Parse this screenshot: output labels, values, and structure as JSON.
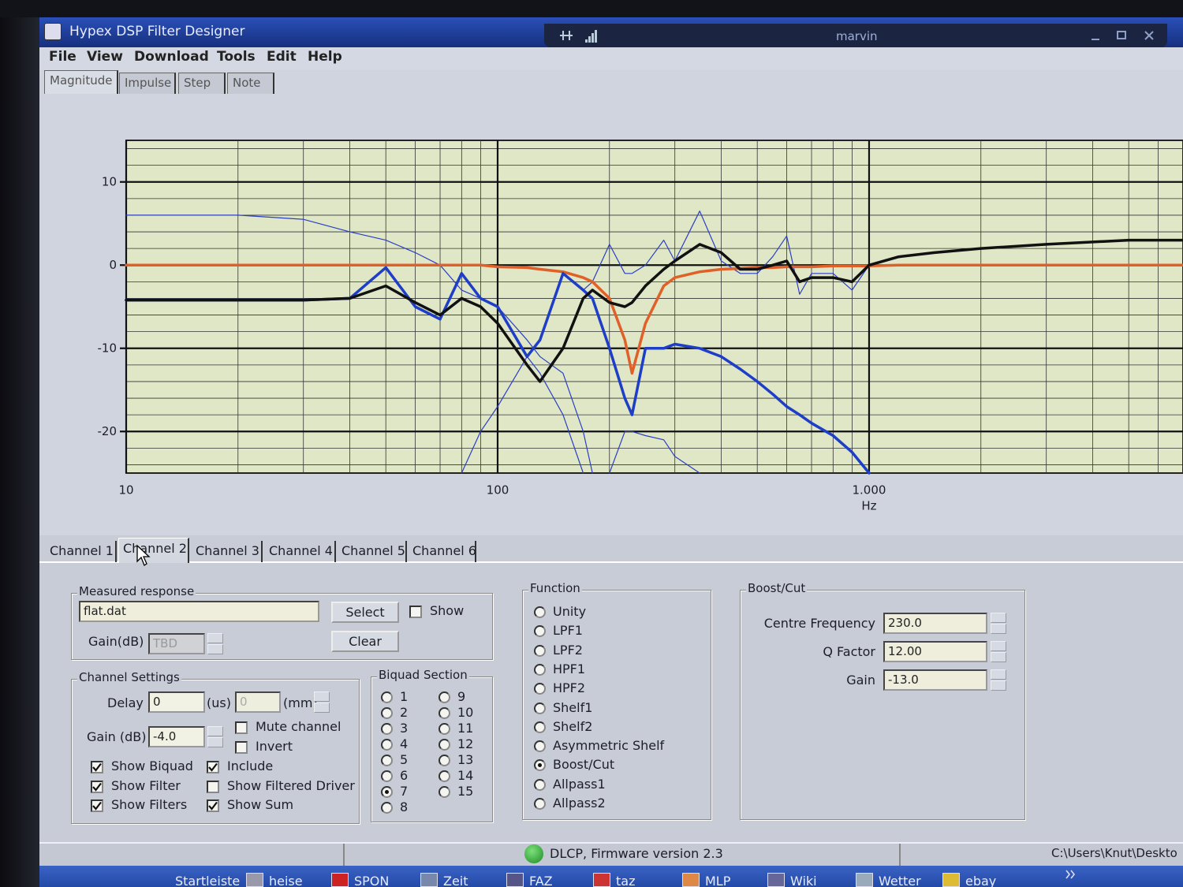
{
  "window": {
    "title": "Hypex DSP Filter Designer",
    "user": "marvin"
  },
  "menu": [
    "File",
    "View",
    "Download",
    "Tools",
    "Edit",
    "Help"
  ],
  "view_tabs": [
    "Magnitude",
    "Impulse",
    "Step",
    "Note"
  ],
  "chart_data": {
    "type": "line",
    "x_label": "Hz",
    "xscale": "log",
    "grid": true,
    "minor_grid": true,
    "xlim": [
      10,
      7000
    ],
    "xticks": [
      10,
      100,
      {
        "value": 1000,
        "label": "1.000"
      }
    ],
    "ylim": [
      -25,
      15
    ],
    "yticks": [
      -20,
      -10,
      0,
      10
    ],
    "x": [
      10,
      20,
      30,
      40,
      50,
      60,
      70,
      80,
      90,
      100,
      120,
      130,
      150,
      170,
      180,
      200,
      220,
      230,
      250,
      280,
      300,
      350,
      400,
      450,
      500,
      550,
      600,
      650,
      700,
      800,
      900,
      1000,
      1200,
      1500,
      2000,
      3000,
      5000,
      7000
    ],
    "series": [
      {
        "color": "#2b3fc4",
        "style": "thin",
        "values": [
          6,
          6,
          5.5,
          4,
          3,
          1.5,
          0,
          -3,
          -4,
          -5,
          -9,
          -11,
          -13,
          -20,
          -25,
          null,
          null,
          null,
          null,
          null,
          null,
          null,
          null,
          null,
          null,
          null,
          null,
          null,
          null,
          null,
          null,
          null,
          null,
          null,
          null,
          null,
          null,
          null
        ]
      },
      {
        "color": "#2b3fc4",
        "style": "thin",
        "values": [
          null,
          null,
          null,
          null,
          null,
          null,
          null,
          -25,
          -20,
          -17,
          -11,
          -13,
          -18,
          -25,
          null,
          -25,
          -20,
          -20,
          -20.5,
          -21,
          -23,
          -25,
          null,
          null,
          null,
          null,
          null,
          null,
          null,
          null,
          null,
          null,
          null,
          null,
          null,
          null,
          null,
          null
        ]
      },
      {
        "color": "#2b3fc4",
        "style": "thin",
        "values": [
          null,
          null,
          null,
          null,
          null,
          null,
          null,
          null,
          null,
          null,
          null,
          null,
          null,
          -3,
          -2,
          2.5,
          -1,
          -1,
          0,
          3,
          0.5,
          6.5,
          0.5,
          -1,
          -1,
          1,
          3.5,
          -3.5,
          -1,
          -1,
          -3,
          0,
          1,
          1.5,
          2,
          2.5,
          3,
          3
        ]
      },
      {
        "color": "#e0602a",
        "style": "thick",
        "values": [
          0,
          0,
          0,
          0,
          0,
          0,
          0,
          0,
          0,
          -0.2,
          -0.3,
          -0.5,
          -0.8,
          -1.5,
          -2,
          -4,
          -9,
          -13,
          -7,
          -2.5,
          -1.5,
          -0.8,
          -0.5,
          -0.4,
          -0.3,
          -0.3,
          -0.2,
          -0.2,
          -0.2,
          -0.1,
          -0.1,
          -0.1,
          0,
          0,
          0,
          0,
          0,
          0
        ]
      },
      {
        "color": "#1f3ec8",
        "style": "thick",
        "values": [
          -4.2,
          -4.2,
          -4.2,
          -4,
          -0.3,
          -5,
          -6.5,
          -1,
          -4,
          -5,
          -11,
          -9,
          -1,
          -3,
          -4,
          -10,
          -16,
          -18,
          -10,
          -10,
          -9.5,
          -10,
          -11,
          -12.5,
          -14,
          -15.5,
          -17,
          -18,
          -19,
          -20.5,
          -22.5,
          -25,
          null,
          null,
          null,
          null,
          null,
          null
        ]
      },
      {
        "color": "#111111",
        "style": "thick",
        "values": [
          -4.2,
          -4.2,
          -4.2,
          -4,
          -2.5,
          -4.5,
          -6,
          -4,
          -5,
          -7,
          -12,
          -14,
          -10,
          -4,
          -3,
          -4.5,
          -5,
          -4.5,
          -2.5,
          -0.5,
          0.5,
          2.5,
          1.5,
          -0.5,
          -0.5,
          0,
          0.5,
          -2,
          -1.5,
          -1.5,
          -2,
          0,
          1,
          1.5,
          2,
          2.5,
          3,
          3
        ]
      }
    ]
  },
  "channel_tabs": [
    "Channel 1",
    "Channel 2",
    "Channel 3",
    "Channel 4",
    "Channel 5",
    "Channel 6"
  ],
  "measured_response": {
    "legend": "Measured response",
    "file": "flat.dat",
    "select": "Select",
    "show": "Show",
    "clear": "Clear",
    "gain_label": "Gain(dB)",
    "gain_value": "TBD"
  },
  "channel_settings": {
    "legend": "Channel Settings",
    "delay_label": "Delay",
    "delay_value": "0",
    "delay_unit": "(us)",
    "distance_value": "0",
    "distance_unit": "(mm)",
    "gain_label": "Gain (dB)",
    "gain_value": "-4.0",
    "checkboxes": [
      {
        "label": "Mute channel",
        "checked": false
      },
      {
        "label": "Invert",
        "checked": false
      },
      {
        "label": "Show Biquad",
        "checked": true
      },
      {
        "label": "Include",
        "checked": true
      },
      {
        "label": "Show Filter",
        "checked": true
      },
      {
        "label": "Show Filtered Driver",
        "checked": false
      },
      {
        "label": "Show Filters",
        "checked": true
      },
      {
        "label": "Show Sum",
        "checked": true
      }
    ]
  },
  "biquad_section": {
    "legend": "Biquad Section",
    "options": [
      {
        "label": "1",
        "selected": false
      },
      {
        "label": "2",
        "selected": false
      },
      {
        "label": "3",
        "selected": false
      },
      {
        "label": "4",
        "selected": false
      },
      {
        "label": "5",
        "selected": false
      },
      {
        "label": "6",
        "selected": false
      },
      {
        "label": "7",
        "selected": true
      },
      {
        "label": "8",
        "selected": false
      },
      {
        "label": "9",
        "selected": false
      },
      {
        "label": "10",
        "selected": false
      },
      {
        "label": "11",
        "selected": false
      },
      {
        "label": "12",
        "selected": false
      },
      {
        "label": "13",
        "selected": false
      },
      {
        "label": "14",
        "selected": false
      },
      {
        "label": "15",
        "selected": false
      }
    ]
  },
  "function": {
    "legend": "Function",
    "options": [
      {
        "label": "Unity",
        "selected": false
      },
      {
        "label": "LPF1",
        "selected": false
      },
      {
        "label": "LPF2",
        "selected": false
      },
      {
        "label": "HPF1",
        "selected": false
      },
      {
        "label": "HPF2",
        "selected": false
      },
      {
        "label": "Shelf1",
        "selected": false
      },
      {
        "label": "Shelf2",
        "selected": false
      },
      {
        "label": "Asymmetric Shelf",
        "selected": false
      },
      {
        "label": "Boost/Cut",
        "selected": true
      },
      {
        "label": "Allpass1",
        "selected": false
      },
      {
        "label": "Allpass2",
        "selected": false
      }
    ]
  },
  "boost_cut": {
    "legend": "Boost/Cut",
    "fields": [
      {
        "label": "Centre Frequency",
        "value": "230.0"
      },
      {
        "label": "Q Factor",
        "value": "12.00"
      },
      {
        "label": "Gain",
        "value": "-13.0"
      }
    ]
  },
  "status": {
    "firmware": "DLCP, Firmware version 2.3",
    "path": "C:\\Users\\Knut\\Deskto"
  },
  "taskbar": [
    "Startleiste",
    "heise",
    "SPON",
    "Zeit",
    "FAZ",
    "taz",
    "MLP",
    "Wiki",
    "Wetter",
    "ebay"
  ]
}
